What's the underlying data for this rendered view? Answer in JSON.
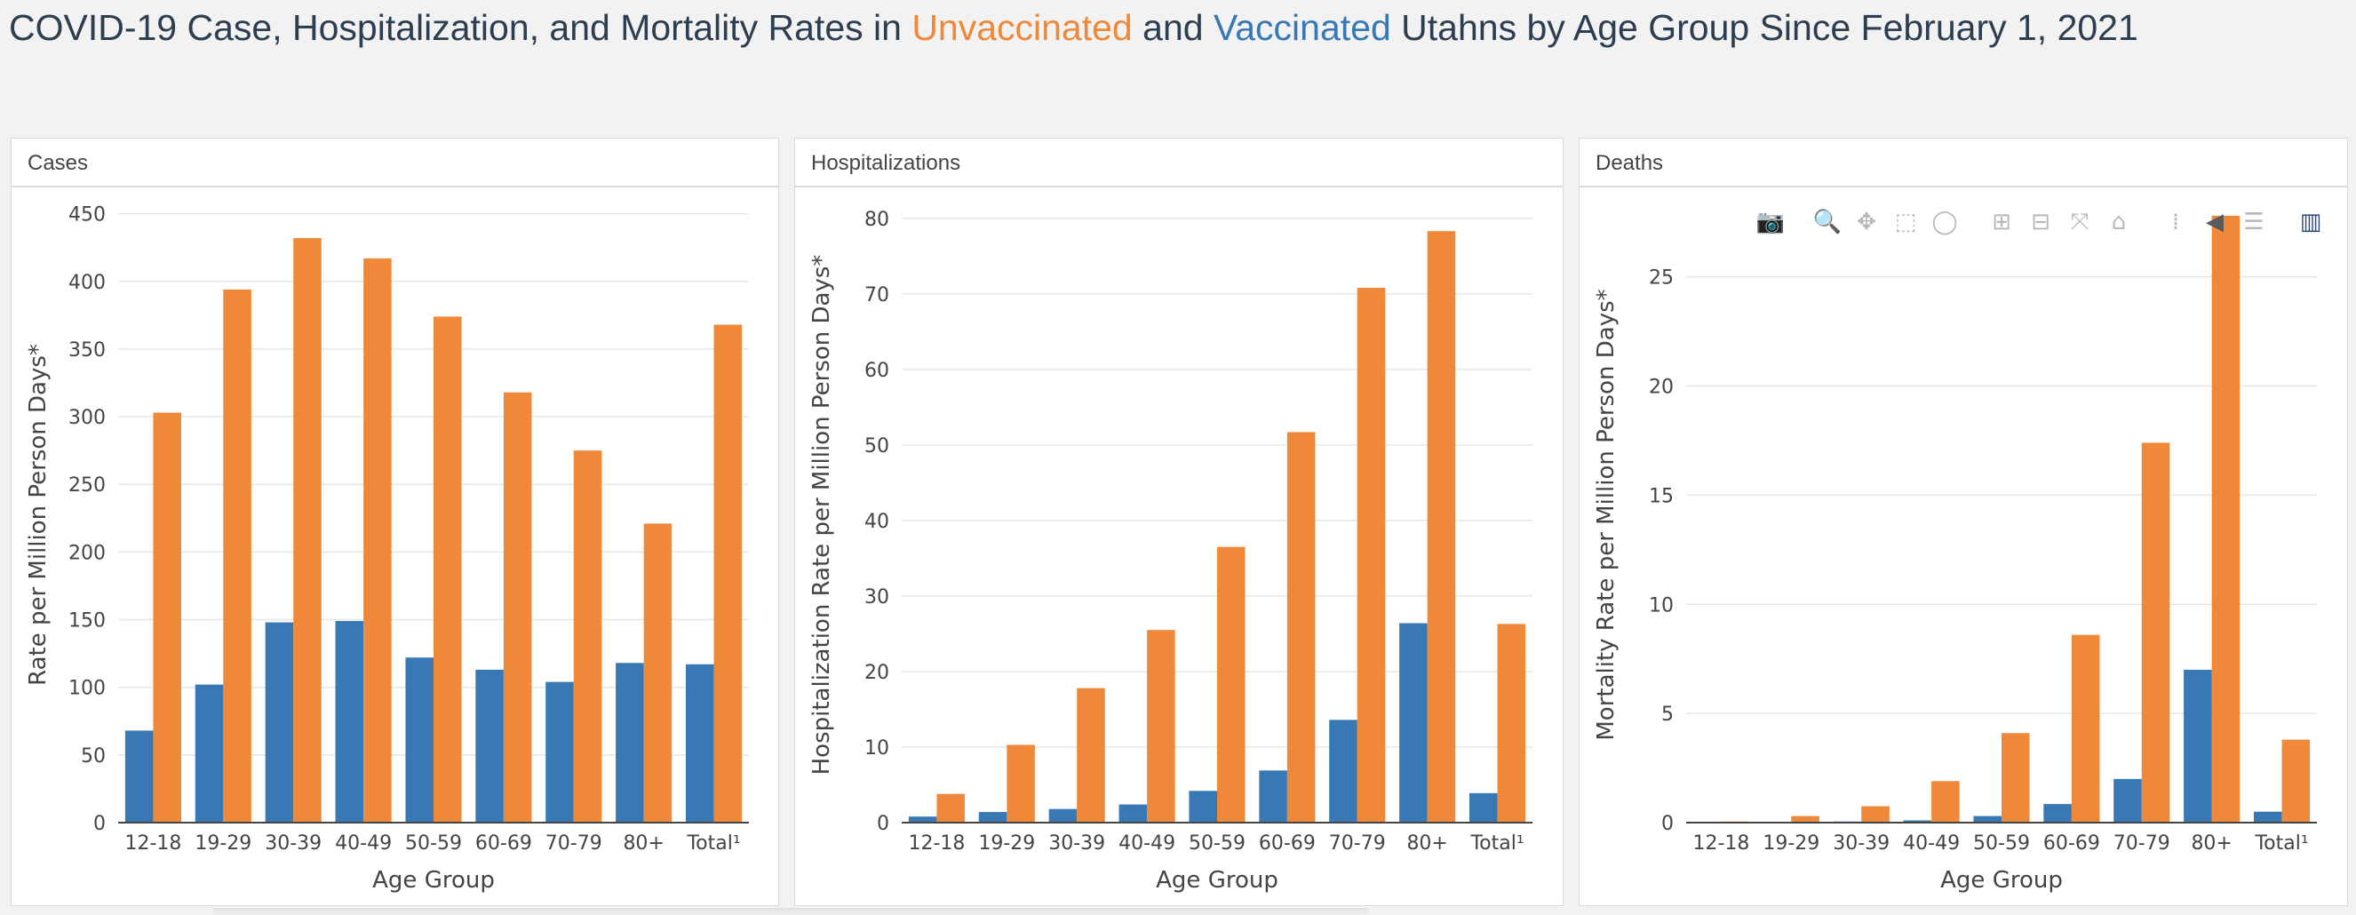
{
  "title": {
    "prefix": "COVID-19 Case, Hospitalization, and Mortality Rates in ",
    "unvaccinated": "Unvaccinated",
    "middle": " and ",
    "vaccinated": "Vaccinated",
    "suffix": " Utahns by Age Group Since February 1, 2021"
  },
  "colors": {
    "unvaccinated": "#f0883a",
    "vaccinated": "#3878b4",
    "title": "#2c3e50"
  },
  "panels": [
    {
      "header": "Cases"
    },
    {
      "header": "Hospitalizations"
    },
    {
      "header": "Deaths"
    }
  ],
  "toolbar": {
    "icons": [
      "camera-icon",
      "zoom-icon",
      "pan-icon",
      "box-select-icon",
      "lasso-select-icon",
      "zoom-in-icon",
      "zoom-out-icon",
      "autoscale-icon",
      "reset-axes-icon",
      "spike-lines-icon",
      "hover-closest-icon",
      "hover-compare-icon",
      "plotly-logo-icon"
    ]
  },
  "chart_data": [
    {
      "type": "bar",
      "categories": [
        "12-18",
        "19-29",
        "30-39",
        "40-49",
        "50-59",
        "60-69",
        "70-79",
        "80+",
        "Total¹"
      ],
      "series": [
        {
          "values": [
            68,
            102,
            148,
            149,
            122,
            113,
            104,
            118,
            117
          ]
        },
        {
          "values": [
            303,
            394,
            432,
            417,
            374,
            318,
            275,
            221,
            368
          ]
        }
      ],
      "xlabel": "Age Group",
      "ylabel": "Rate per Million Person Days*",
      "ylim": [
        0,
        455
      ],
      "yticks": [
        0,
        50,
        100,
        150,
        200,
        250,
        300,
        350,
        400,
        450
      ],
      "grid": true
    },
    {
      "type": "bar",
      "categories": [
        "12-18",
        "19-29",
        "30-39",
        "40-49",
        "50-59",
        "60-69",
        "70-79",
        "80+",
        "Total¹"
      ],
      "series": [
        {
          "values": [
            0.8,
            1.4,
            1.8,
            2.4,
            4.2,
            6.9,
            13.6,
            26.4,
            3.9
          ]
        },
        {
          "values": [
            3.8,
            10.3,
            17.8,
            25.5,
            36.5,
            51.7,
            70.8,
            78.3,
            26.3
          ]
        }
      ],
      "xlabel": "Age Group",
      "ylabel": "Hospitalization Rate per Million Person Days*",
      "ylim": [
        0,
        81.5
      ],
      "yticks": [
        0,
        10,
        20,
        30,
        40,
        50,
        60,
        70,
        80
      ],
      "grid": true
    },
    {
      "type": "bar",
      "categories": [
        "12-18",
        "19-29",
        "30-39",
        "40-49",
        "50-59",
        "60-69",
        "70-79",
        "80+",
        "Total¹"
      ],
      "series": [
        {
          "values": [
            0,
            0.02,
            0.05,
            0.1,
            0.3,
            0.85,
            2.0,
            7.0,
            0.5
          ]
        },
        {
          "values": [
            0.05,
            0.3,
            0.75,
            1.9,
            4.1,
            8.6,
            17.4,
            27.8,
            3.8
          ]
        }
      ],
      "xlabel": "Age Group",
      "ylabel": "Mortality Rate per Million Person Days*",
      "ylim": [
        0,
        28.2
      ],
      "yticks": [
        0,
        5,
        10,
        15,
        20,
        25
      ],
      "grid": true
    }
  ]
}
